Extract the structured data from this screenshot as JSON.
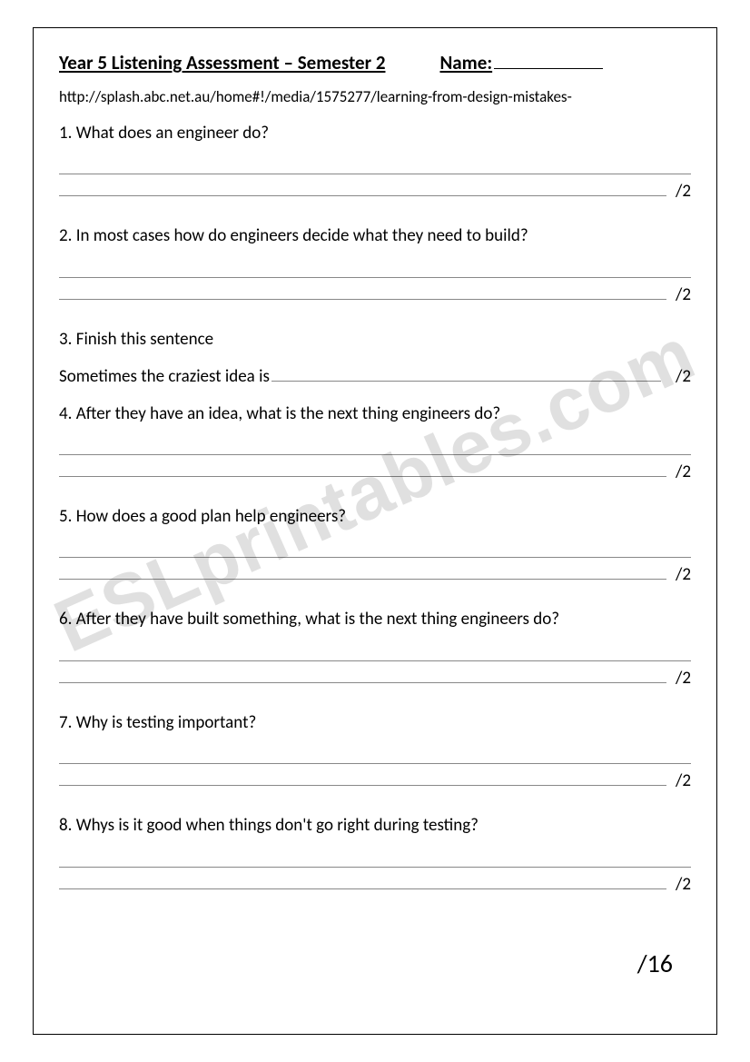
{
  "header": {
    "title": "Year 5 Listening Assessment – Semester 2",
    "name_label": "Name:"
  },
  "url_text": "http://splash.abc.net.au/home#!/media/1575277/learning-from-design-mistakes-",
  "questions": [
    {
      "num": "1.",
      "text": "What does an engineer do?",
      "score": "/2",
      "type": "two_lines"
    },
    {
      "num": "2.",
      "text": "In most cases how do engineers decide what they need to build?",
      "score": "/2",
      "type": "two_lines"
    },
    {
      "num": "3.",
      "text": "Finish this sentence",
      "sentence_lead": "Sometimes the craziest idea is",
      "score": "/2",
      "type": "sentence"
    },
    {
      "num": "4.",
      "text": "After they have an idea, what is the next thing engineers do?",
      "score": "/2",
      "type": "two_lines"
    },
    {
      "num": "5.",
      "text": "How does a good plan help engineers?",
      "score": "/2",
      "type": "two_lines"
    },
    {
      "num": "6.",
      "text": "After they have built something, what is the next thing engineers do?",
      "score": "/2",
      "type": "two_lines"
    },
    {
      "num": "7.",
      "text": "Why is testing important?",
      "score": "/2",
      "type": "two_lines"
    },
    {
      "num": "8.",
      "text": "Whys is it good when things don't go right during testing?",
      "score": "/2",
      "type": "two_lines"
    }
  ],
  "total_score": "/16",
  "watermark_text": "ESLprintables.com",
  "colors": {
    "text": "#000000",
    "line": "#888888",
    "background": "#ffffff",
    "watermark": "rgba(0,0,0,0.12)"
  }
}
